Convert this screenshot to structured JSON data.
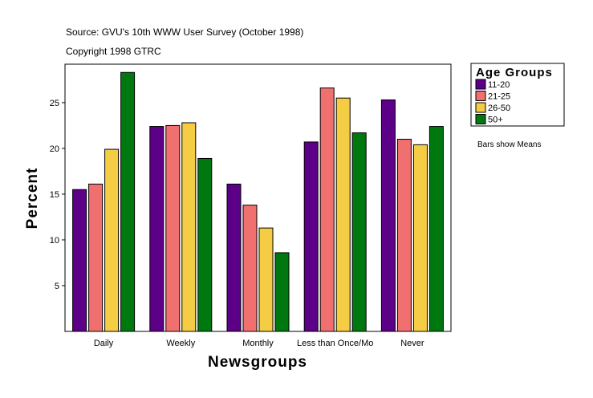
{
  "header": {
    "source": "Source: GVU's 10th WWW User Survey (October 1998)",
    "copyright": "Copyright 1998 GTRC"
  },
  "note": "Bars show Means",
  "chart_data": {
    "type": "bar",
    "xlabel": "Newsgroups",
    "ylabel": "Percent",
    "ylim": [
      0,
      29.2
    ],
    "yticks": [
      5,
      10,
      15,
      20,
      25
    ],
    "grid": false,
    "legend_title": "Age Groups",
    "legend_position": "right",
    "categories": [
      "Daily",
      "Weekly",
      "Monthly",
      "Less than Once/Mo",
      "Never"
    ],
    "series": [
      {
        "name": "11-20",
        "color": "#5c0087",
        "values": [
          15.5,
          22.4,
          16.1,
          20.7,
          25.3
        ]
      },
      {
        "name": "21-25",
        "color": "#f07070",
        "values": [
          16.1,
          22.5,
          13.8,
          26.6,
          21.0
        ]
      },
      {
        "name": "26-50",
        "color": "#f5cd45",
        "values": [
          19.9,
          22.8,
          11.3,
          25.5,
          20.4
        ]
      },
      {
        "name": "50+",
        "color": "#007810",
        "values": [
          28.3,
          18.9,
          8.6,
          21.7,
          22.4
        ]
      }
    ]
  }
}
